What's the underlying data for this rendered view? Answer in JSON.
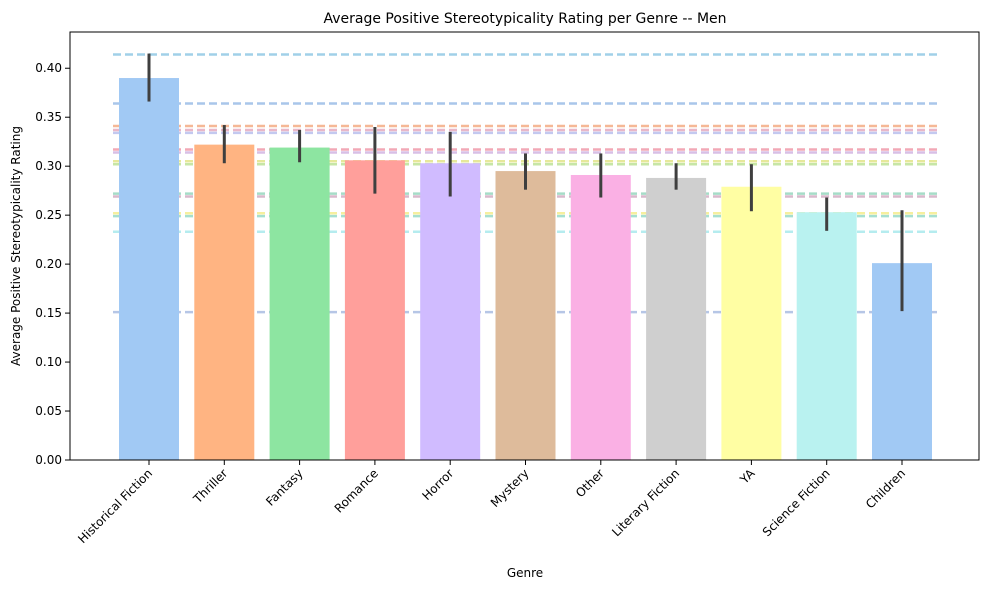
{
  "chart_data": {
    "type": "bar",
    "title": "Average Positive Stereotypicality Rating per Genre -- Men",
    "xlabel": "Genre",
    "ylabel": "Average Positive Stereotypicality Rating",
    "ylim": [
      0,
      0.437
    ],
    "yticks": [
      "0.00",
      "0.05",
      "0.10",
      "0.15",
      "0.20",
      "0.25",
      "0.30",
      "0.35",
      "0.40"
    ],
    "categories": [
      "Historical Fiction",
      "Thriller",
      "Fantasy",
      "Romance",
      "Horror",
      "Mystery",
      "Other",
      "Literary Fiction",
      "YA",
      "Science Fiction",
      "Children"
    ],
    "values": [
      0.39,
      0.322,
      0.319,
      0.306,
      0.303,
      0.295,
      0.291,
      0.288,
      0.279,
      0.253,
      0.201
    ],
    "error_low": [
      0.366,
      0.303,
      0.304,
      0.272,
      0.269,
      0.276,
      0.268,
      0.276,
      0.254,
      0.234,
      0.152
    ],
    "error_high": [
      0.415,
      0.342,
      0.337,
      0.34,
      0.335,
      0.313,
      0.313,
      0.303,
      0.302,
      0.268,
      0.255
    ],
    "colors": [
      "#a1c9f4",
      "#ffb482",
      "#8de5a1",
      "#ff9f9b",
      "#d0bbff",
      "#debb9b",
      "#fab0e4",
      "#cfcfcf",
      "#fffea3",
      "#b9f2f0",
      "#a1c9f4"
    ],
    "reference_lines": [
      {
        "value": 0.414,
        "color": "#a1d0e8"
      },
      {
        "value": 0.364,
        "color": "#a9c6ea"
      },
      {
        "value": 0.341,
        "color": "#f5b896"
      },
      {
        "value": 0.337,
        "color": "#e9b7c8"
      },
      {
        "value": 0.334,
        "color": "#c3c9f0"
      },
      {
        "value": 0.317,
        "color": "#f2a8b6"
      },
      {
        "value": 0.314,
        "color": "#d8bfe6"
      },
      {
        "value": 0.305,
        "color": "#e6e89a"
      },
      {
        "value": 0.302,
        "color": "#c7e6a6"
      },
      {
        "value": 0.272,
        "color": "#a6dcc8"
      },
      {
        "value": 0.269,
        "color": "#d9b8cc"
      },
      {
        "value": 0.252,
        "color": "#f6ef9e"
      },
      {
        "value": 0.249,
        "color": "#a6dfd0"
      },
      {
        "value": 0.233,
        "color": "#b5ecef"
      },
      {
        "value": 0.151,
        "color": "#b6c6e6"
      }
    ],
    "grid": false,
    "legend": "none"
  }
}
